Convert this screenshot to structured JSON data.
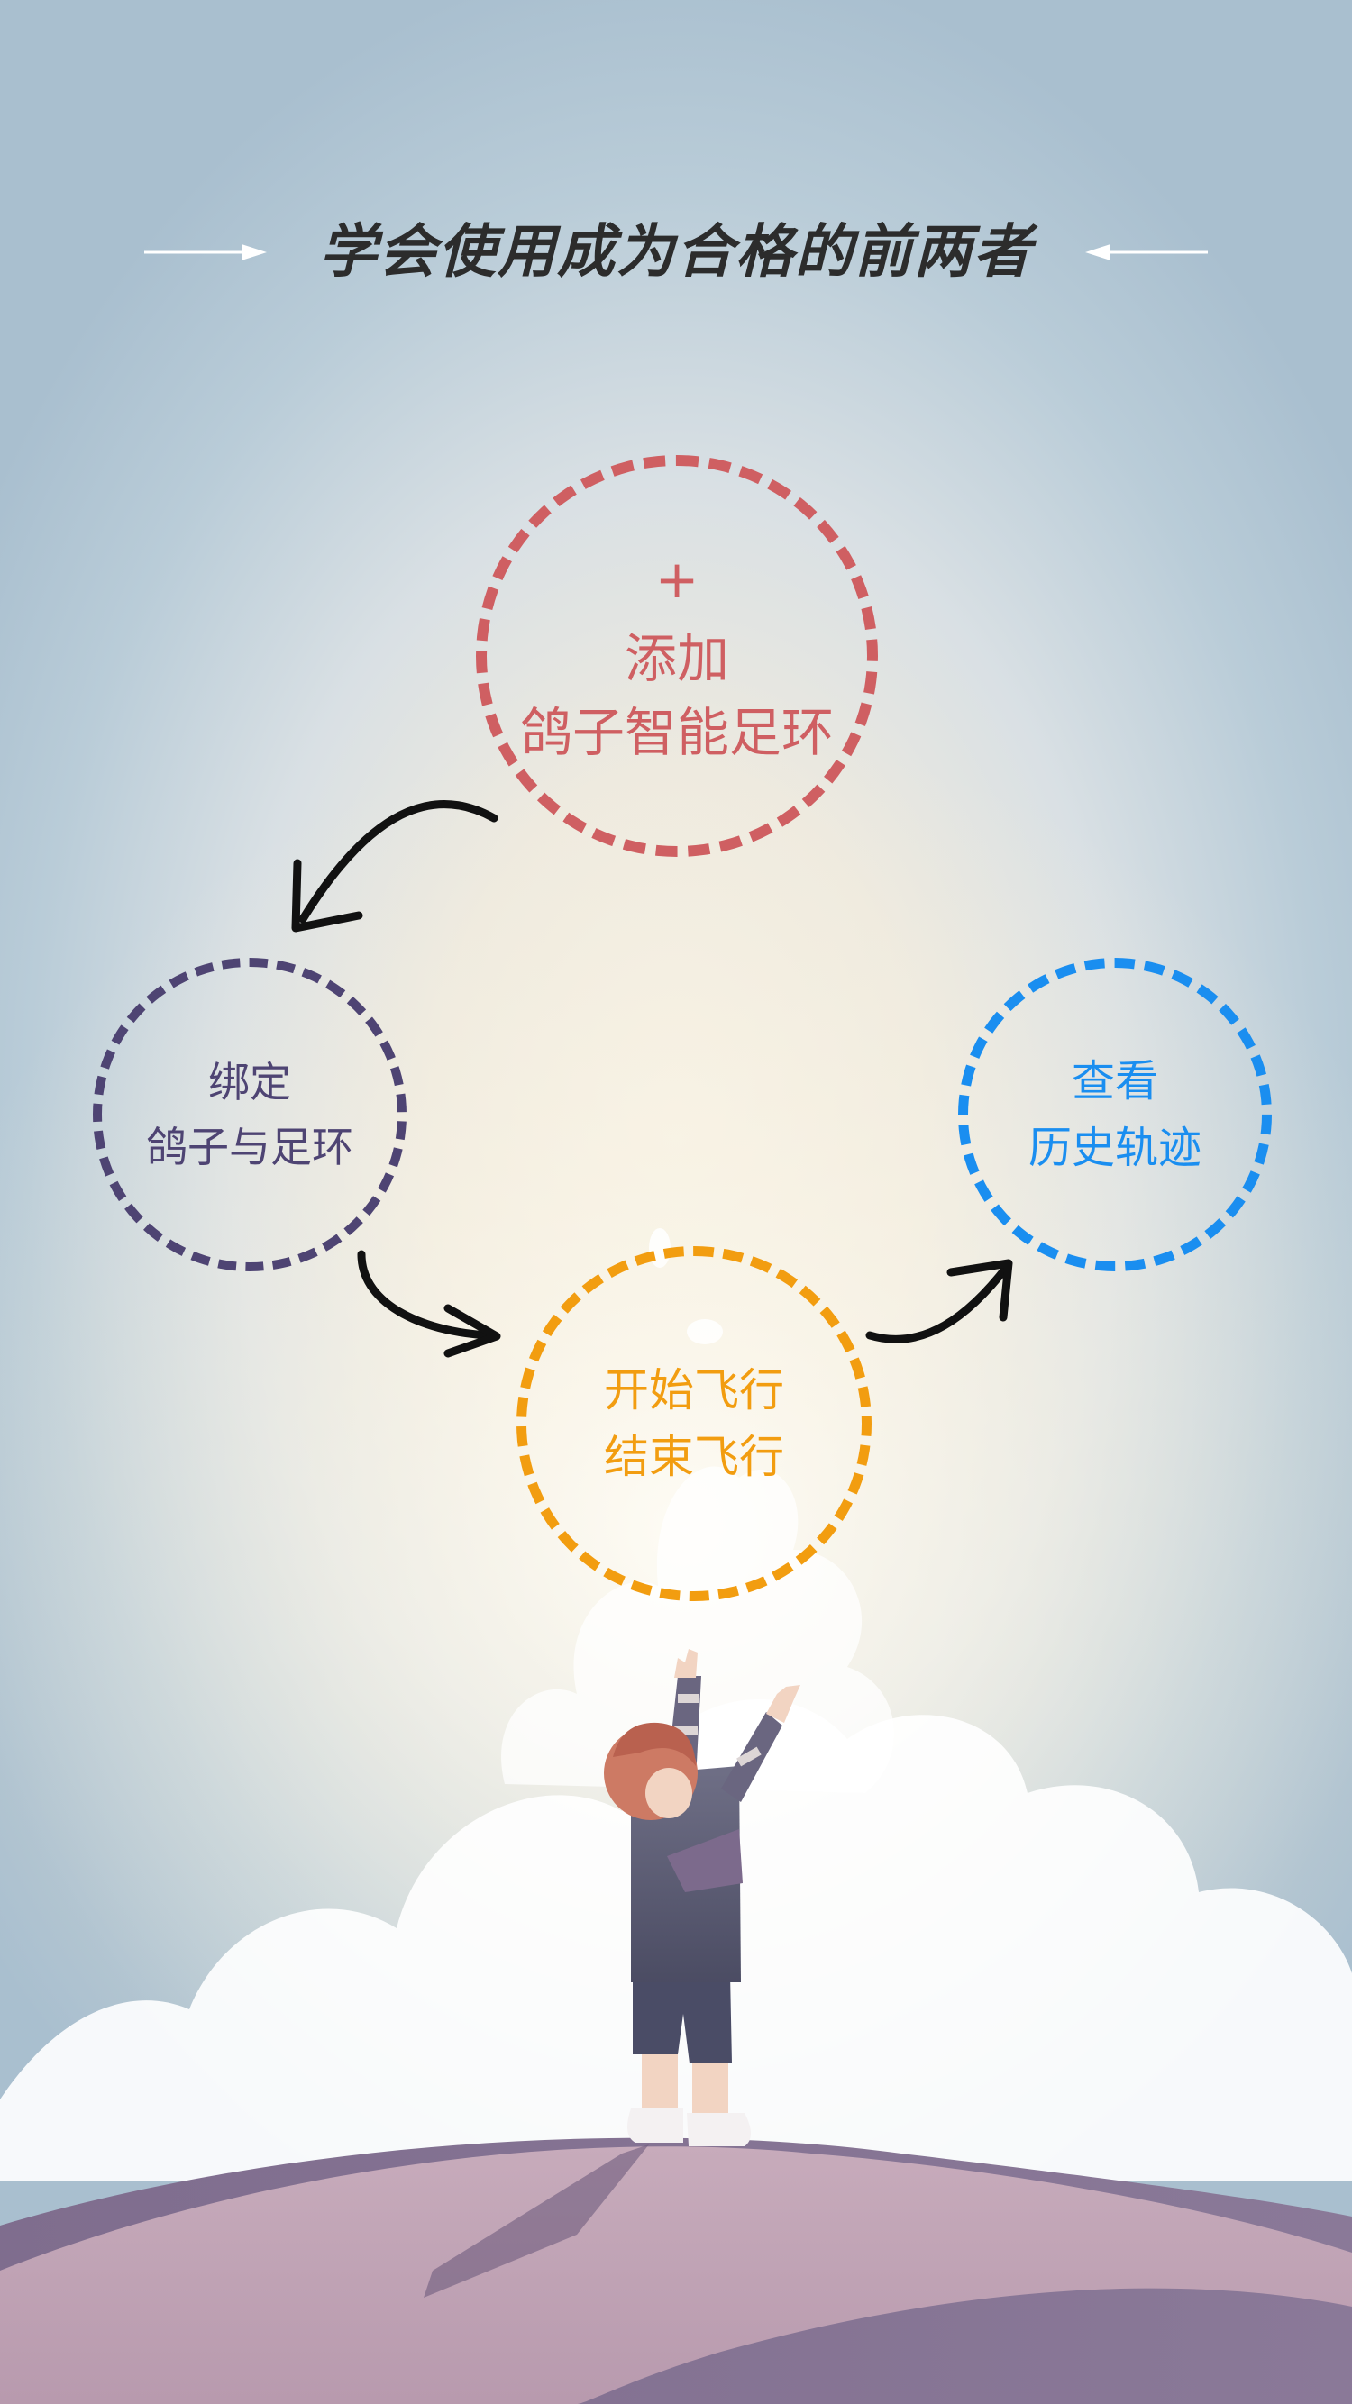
{
  "title": {
    "text": "学会使用成为合格的前两者",
    "arrow_color": "#ffffff"
  },
  "steps": [
    {
      "id": "add",
      "icon": "plus-icon",
      "icon_glyph": "+",
      "lines": [
        "添加",
        "鸽子智能足环"
      ],
      "color": "#cf5f62"
    },
    {
      "id": "bind",
      "lines": [
        "绑定",
        "鸽子与足环"
      ],
      "color": "#4e4473"
    },
    {
      "id": "fly",
      "lines": [
        "开始飞行",
        "结束飞行"
      ],
      "color": "#f29d10"
    },
    {
      "id": "track",
      "lines": [
        "查看",
        "历史轨迹"
      ],
      "color": "#1a8ef0"
    }
  ],
  "flow": {
    "arrow_color": "#111111",
    "order": [
      "add",
      "bind",
      "fly",
      "track"
    ]
  },
  "illustration": {
    "subject": "child-reaching-toward-pigeon",
    "hill_colors": [
      "#c9aebd",
      "#8a7896"
    ],
    "cloud_color": "#ffffff"
  }
}
